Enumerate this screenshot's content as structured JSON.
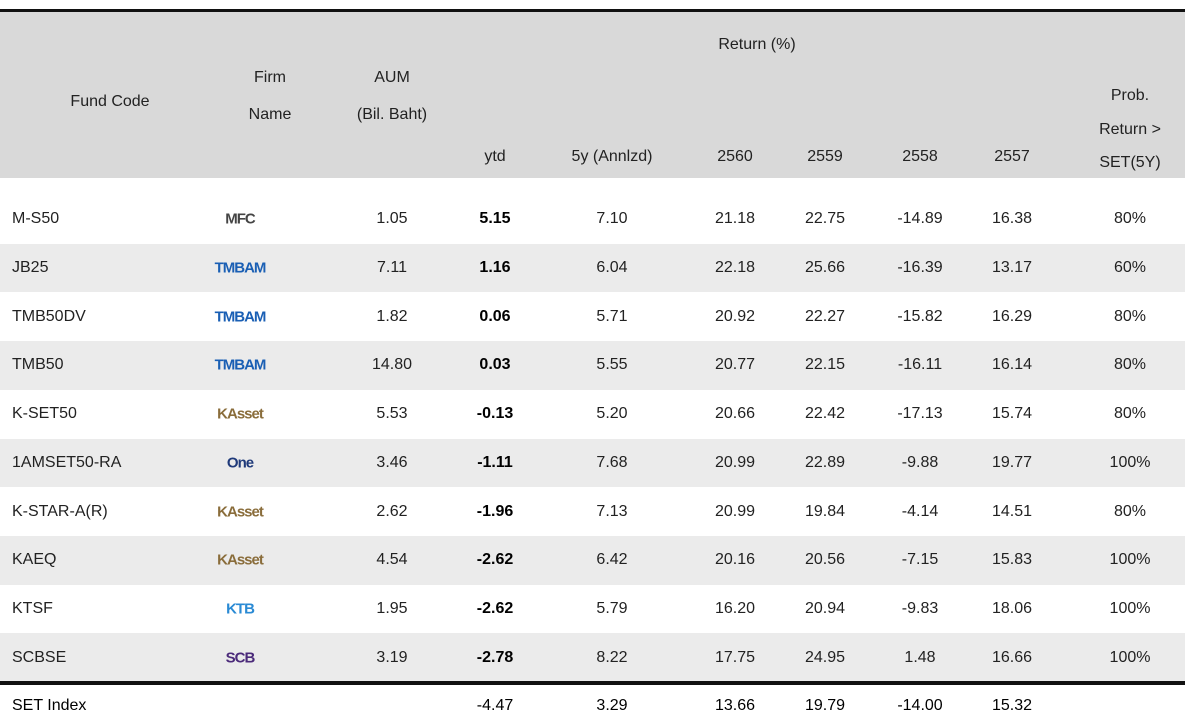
{
  "table": {
    "return_group": "Return (%)",
    "columns": [
      [
        "Fund Code"
      ],
      [
        "Firm",
        "Name"
      ],
      [
        "AUM",
        "(Bil. Baht)"
      ],
      [
        "ytd"
      ],
      [
        "5y (Annlzd)"
      ],
      [
        "2560"
      ],
      [
        "2559"
      ],
      [
        "2558"
      ],
      [
        "2557"
      ],
      [
        "Prob.",
        "Return >",
        "SET(5Y)"
      ]
    ],
    "firm_colors": {
      "MFC": "#444444",
      "TMBAM": "#1a5fb4",
      "KAsset": "#8a6d3b",
      "One": "#1f3a7a",
      "SCB": "#4b2a7a",
      "KTB": "#2a8ad4"
    },
    "rows": [
      {
        "code": "M-S50",
        "firm": "MFC",
        "values": [
          "1.05",
          "5.15",
          "7.10",
          "21.18",
          "22.75",
          "-14.89",
          "16.38",
          "80%"
        ]
      },
      {
        "code": "JB25",
        "firm": "TMBAM",
        "values": [
          "7.11",
          "1.16",
          "6.04",
          "22.18",
          "25.66",
          "-16.39",
          "13.17",
          "60%"
        ]
      },
      {
        "code": "TMB50DV",
        "firm": "TMBAM",
        "values": [
          "1.82",
          "0.06",
          "5.71",
          "20.92",
          "22.27",
          "-15.82",
          "16.29",
          "80%"
        ]
      },
      {
        "code": "TMB50",
        "firm": "TMBAM",
        "values": [
          "14.80",
          "0.03",
          "5.55",
          "20.77",
          "22.15",
          "-16.11",
          "16.14",
          "80%"
        ]
      },
      {
        "code": "K-SET50",
        "firm": "KAsset",
        "values": [
          "5.53",
          "-0.13",
          "5.20",
          "20.66",
          "22.42",
          "-17.13",
          "15.74",
          "80%"
        ]
      },
      {
        "code": "1AMSET50-RA",
        "firm": "One",
        "values": [
          "3.46",
          "-1.11",
          "7.68",
          "20.99",
          "22.89",
          "-9.88",
          "19.77",
          "100%"
        ]
      },
      {
        "code": "K-STAR-A(R)",
        "firm": "KAsset",
        "values": [
          "2.62",
          "-1.96",
          "7.13",
          "20.99",
          "19.84",
          "-4.14",
          "14.51",
          "80%"
        ]
      },
      {
        "code": "KAEQ",
        "firm": "KAsset",
        "values": [
          "4.54",
          "-2.62",
          "6.42",
          "20.16",
          "20.56",
          "-7.15",
          "15.83",
          "100%"
        ]
      },
      {
        "code": "KTSF",
        "firm": "KTB",
        "values": [
          "1.95",
          "-2.62",
          "5.79",
          "16.20",
          "20.94",
          "-9.83",
          "18.06",
          "100%"
        ]
      },
      {
        "code": "SCBSE",
        "firm": "SCB",
        "values": [
          "3.19",
          "-2.78",
          "8.22",
          "17.75",
          "24.95",
          "1.48",
          "16.66",
          "100%"
        ]
      }
    ],
    "index_row": {
      "code": "SET Index",
      "values": [
        "-4.47",
        "3.29",
        "13.66",
        "19.79",
        "-14.00",
        "15.32"
      ]
    }
  }
}
